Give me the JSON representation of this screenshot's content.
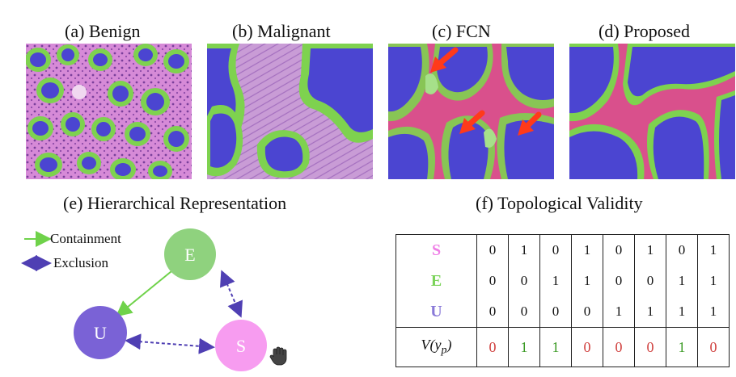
{
  "panels": [
    {
      "label": "(a) Benign"
    },
    {
      "label": "(b) Malignant"
    },
    {
      "label": "(c) FCN"
    },
    {
      "label": "(d) Proposed"
    }
  ],
  "hierarchy": {
    "title": "(e) Hierarchical Representation",
    "legend": {
      "containment": "Containment",
      "exclusion": "Exclusion"
    },
    "nodes": {
      "E": "E",
      "U": "U",
      "S": "S"
    },
    "colors": {
      "E": "#8fd27e",
      "U": "#7a62d6",
      "S": "#f79cf0",
      "containment": "#6fd24a",
      "exclusion": "#4f3fb3"
    }
  },
  "validity": {
    "title": "(f) Topological Validity",
    "rows": [
      {
        "name": "S",
        "color": "#ef7ee6",
        "values": [
          "0",
          "1",
          "0",
          "1",
          "0",
          "1",
          "0",
          "1"
        ]
      },
      {
        "name": "E",
        "color": "#7bd35a",
        "values": [
          "0",
          "0",
          "1",
          "1",
          "0",
          "0",
          "1",
          "1"
        ]
      },
      {
        "name": "U",
        "color": "#8a7ad8",
        "values": [
          "0",
          "0",
          "0",
          "0",
          "1",
          "1",
          "1",
          "1"
        ]
      }
    ],
    "v_label": "V(y",
    "v_sub": "p",
    "v_close": ")",
    "v_values": [
      "0",
      "1",
      "1",
      "0",
      "0",
      "0",
      "1",
      "0"
    ]
  }
}
